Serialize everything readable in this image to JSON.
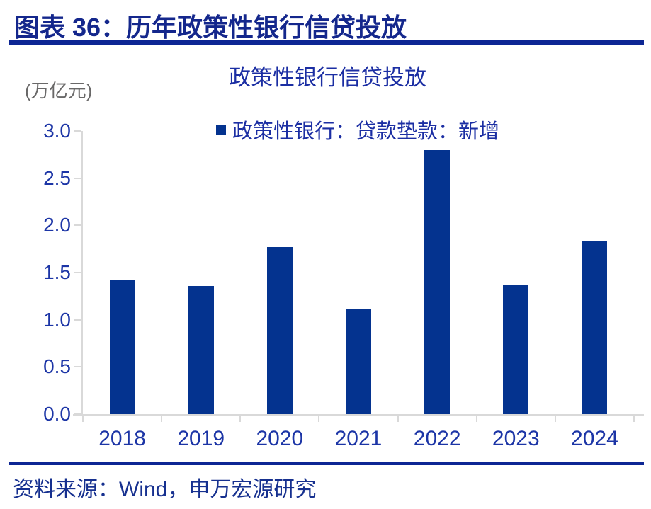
{
  "header": {
    "title": "图表 36：历年政策性银行信贷投放"
  },
  "chart_data": {
    "type": "bar",
    "title": "政策性银行信贷投放",
    "ylabel": "(万亿元)",
    "xlabel": "",
    "categories": [
      "2018",
      "2019",
      "2020",
      "2021",
      "2022",
      "2023",
      "2024"
    ],
    "values": [
      1.42,
      1.36,
      1.77,
      1.11,
      2.8,
      1.37,
      1.84
    ],
    "ylim": [
      0,
      3.0
    ],
    "yticks": [
      0.0,
      0.5,
      1.0,
      1.5,
      2.0,
      2.5,
      3.0
    ],
    "legend": [
      "政策性银行：贷款垫款：新增"
    ],
    "legend_position": "top-center",
    "grid": false,
    "bar_color": "#04338f"
  },
  "footer": {
    "source": "资料来源：Wind，申万宏源研究"
  },
  "colors": {
    "accent": "#04338f",
    "header_text": "#14278c",
    "rule": "#0d2694",
    "title_text": "#1b2ea3",
    "axis_text": "#1c35a6",
    "unit_text": "#696868",
    "footer_text": "#16308f",
    "axis_line": "#d9d9d9"
  }
}
